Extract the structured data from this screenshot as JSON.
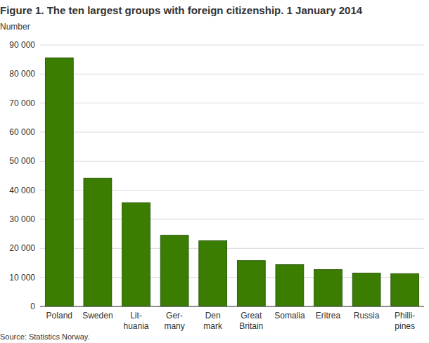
{
  "chart_data": {
    "type": "bar",
    "title": "Figure 1. The ten largest groups with foreign citizenship. 1 January 2014",
    "y_label": "Number",
    "source": "Source: Statistics Norway.",
    "categories": [
      "Poland",
      "Sweden",
      "Lit-\nhuania",
      "Ger-\nmany",
      "Den\nmark",
      "Great\nBritain",
      "Somalia",
      "Eritrea",
      "Russia",
      "Philli-\npines"
    ],
    "values": [
      85600,
      44200,
      35700,
      24500,
      22600,
      15800,
      14400,
      12700,
      11500,
      11300
    ],
    "color": "#3a7d00",
    "ylim": [
      0,
      90000
    ],
    "yticks": [
      0,
      {
        "value": 10000,
        "label": "10 000"
      },
      {
        "value": 20000,
        "label": "20 000"
      },
      {
        "value": 30000,
        "label": "30 000"
      },
      {
        "value": 40000,
        "label": "40 000"
      },
      {
        "value": 50000,
        "label": "50 000"
      },
      {
        "value": 60000,
        "label": "60 000"
      },
      {
        "value": 70000,
        "label": "70 000"
      },
      {
        "value": 80000,
        "label": "80 000"
      },
      {
        "value": 90000,
        "label": "90 000"
      }
    ],
    "grid": true
  }
}
